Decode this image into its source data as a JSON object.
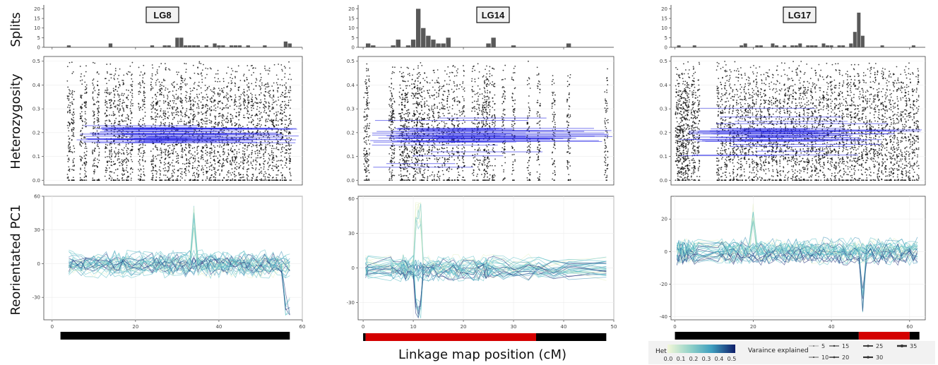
{
  "figure": {
    "row_labels": [
      "Splits",
      "Heterozygosity",
      "Reorientated PC1"
    ],
    "x_axis_label": "Linkage map position (cM)"
  },
  "legend": {
    "het_title": "Het",
    "het_ticks": [
      "0.0",
      "0.1",
      "0.2",
      "0.3",
      "0.4",
      "0.5"
    ],
    "var_title": "Varaince explained",
    "var_items": [
      "5",
      "10",
      "15",
      "20",
      "25",
      "30",
      "35"
    ]
  },
  "colors": {
    "bar": "#595959",
    "points": "#000000",
    "het_line": "#2a2ae6",
    "pc_light": "#e6f2c8",
    "pc_mid": "#5fc0c7",
    "pc_dark": "#1f2f7a",
    "track_black": "#000000",
    "track_red": "#d40000"
  },
  "chart_data": [
    {
      "type": "bar",
      "panel": "LG8",
      "ylabel": "Splits",
      "ylim": [
        0,
        22
      ],
      "yticks": [
        0,
        5,
        10,
        15,
        20
      ],
      "xlim": [
        -2,
        60
      ],
      "x": [
        4,
        14,
        24,
        27,
        28,
        30,
        31,
        32,
        33,
        34,
        35,
        37,
        39,
        40,
        41,
        43,
        44,
        45,
        47,
        51,
        56,
        57
      ],
      "values": [
        1,
        2,
        1,
        1,
        1,
        5,
        5,
        1,
        1,
        1,
        1,
        1,
        2,
        1,
        1,
        1,
        1,
        1,
        1,
        1,
        3,
        2
      ]
    },
    {
      "type": "scatter",
      "panel": "LG8",
      "ylabel": "Heterozygosity",
      "ylim": [
        -0.02,
        0.52
      ],
      "yticks": [
        0.0,
        0.1,
        0.2,
        0.3,
        0.4,
        0.5
      ],
      "xlim": [
        -2,
        60
      ],
      "point_cluster_x": [
        4,
        5,
        7,
        8,
        10,
        11,
        13,
        14,
        15,
        16,
        17,
        18,
        19,
        21,
        22,
        24,
        25,
        26,
        27,
        28,
        29,
        30,
        31,
        32,
        33,
        34,
        35,
        36,
        37,
        38,
        39,
        40,
        41,
        42,
        43,
        44,
        45,
        46,
        47,
        48,
        49,
        50,
        51,
        52,
        53,
        54,
        55,
        56,
        57
      ],
      "segment_level_range": [
        0.15,
        0.23
      ]
    },
    {
      "type": "line",
      "panel": "LG8",
      "ylabel": "Reorientated PC1",
      "ylim": [
        -50,
        60
      ],
      "yticks": [
        -30,
        0,
        30,
        60
      ],
      "xlim": [
        -2,
        60
      ],
      "xticks": [
        0,
        20,
        40,
        60
      ],
      "peak": {
        "x": 34,
        "y": 55
      },
      "trough": {
        "x": 56.5,
        "y": -48
      }
    },
    {
      "type": "bar",
      "panel": "LG14",
      "ylabel": "Splits",
      "ylim": [
        0,
        22
      ],
      "yticks": [
        0,
        5,
        10,
        15,
        20
      ],
      "xlim": [
        -1,
        50
      ],
      "x": [
        1,
        2,
        6,
        7,
        9,
        10,
        11,
        12,
        13,
        14,
        15,
        16,
        17,
        25,
        26,
        30,
        41
      ],
      "values": [
        2,
        1,
        1,
        4,
        1,
        4,
        20,
        10,
        6,
        4,
        2,
        2,
        5,
        2,
        5,
        1,
        2
      ]
    },
    {
      "type": "scatter",
      "panel": "LG14",
      "ylabel": "Heterozygosity",
      "ylim": [
        -0.02,
        0.52
      ],
      "yticks": [
        0.0,
        0.1,
        0.2,
        0.3,
        0.4,
        0.5
      ],
      "xlim": [
        -1,
        50
      ],
      "point_cluster_x": [
        0.5,
        1,
        5.5,
        6,
        7.5,
        8,
        8.5,
        9,
        10,
        10.5,
        11,
        11.5,
        12,
        13,
        14,
        15,
        16,
        17,
        18,
        19,
        20,
        22,
        23,
        24,
        24.5,
        25,
        26,
        28,
        30,
        33,
        35,
        38,
        41,
        48.5
      ],
      "segment_level_range": [
        0.05,
        0.28
      ]
    },
    {
      "type": "line",
      "panel": "LG14",
      "ylabel": "Reorientated PC1",
      "ylim": [
        -45,
        62
      ],
      "yticks": [
        -30,
        0,
        30,
        60
      ],
      "xlim": [
        -1,
        50
      ],
      "xticks": [
        0,
        10,
        20,
        30,
        40,
        50
      ],
      "peak": {
        "x": 11,
        "y": 57
      },
      "trough": {
        "x": 11,
        "y": -45
      }
    },
    {
      "type": "bar",
      "panel": "LG17",
      "ylabel": "Splits",
      "ylim": [
        0,
        22
      ],
      "yticks": [
        0,
        5,
        10,
        15,
        20
      ],
      "xlim": [
        -1,
        64
      ],
      "x": [
        1,
        5,
        17,
        18,
        21,
        22,
        25,
        26,
        28,
        30,
        31,
        32,
        34,
        35,
        36,
        38,
        39,
        40,
        42,
        43,
        45,
        46,
        47,
        48,
        53,
        61
      ],
      "values": [
        1,
        1,
        1,
        2,
        1,
        1,
        2,
        1,
        1,
        1,
        1,
        2,
        1,
        1,
        1,
        2,
        1,
        1,
        1,
        1,
        2,
        8,
        18,
        6,
        1,
        1
      ]
    },
    {
      "type": "scatter",
      "panel": "LG17",
      "ylabel": "Heterozygosity",
      "ylim": [
        -0.02,
        0.52
      ],
      "yticks": [
        0.0,
        0.1,
        0.2,
        0.3,
        0.4,
        0.5
      ],
      "xlim": [
        -1,
        64
      ],
      "point_cluster_x": [
        0.5,
        1,
        1.5,
        2,
        2.5,
        3,
        3.5,
        4.5,
        5,
        6,
        11,
        12,
        13,
        14,
        15,
        16,
        17,
        18,
        19,
        20,
        21,
        22,
        23,
        24,
        25,
        26,
        27,
        28,
        29,
        30,
        31,
        32,
        33,
        34,
        35,
        36,
        37,
        38,
        39,
        40,
        41,
        42,
        43,
        44,
        45,
        46,
        47,
        48,
        49,
        50,
        51,
        52,
        53,
        54,
        55,
        56,
        57,
        58,
        59,
        60,
        61,
        62
      ],
      "segment_level_range": [
        0.06,
        0.31
      ]
    },
    {
      "type": "line",
      "panel": "LG17",
      "ylabel": "Reorientated PC1",
      "ylim": [
        -42,
        34
      ],
      "yticks": [
        -40,
        -20,
        0,
        20
      ],
      "xlim": [
        -1,
        64
      ],
      "xticks": [
        0,
        20,
        40,
        60
      ],
      "peak": {
        "x": 20,
        "y": 30
      },
      "trough": {
        "x": 48,
        "y": -38
      }
    }
  ],
  "panels": [
    {
      "title": "LG8",
      "track": [
        {
          "from": 2,
          "to": 57,
          "color": "#000000"
        }
      ]
    },
    {
      "title": "LG14",
      "track": [
        {
          "from": 0,
          "to": 0.5,
          "color": "#000000"
        },
        {
          "from": 0.5,
          "to": 34.5,
          "color": "#d40000"
        },
        {
          "from": 34.5,
          "to": 48.5,
          "color": "#000000"
        }
      ]
    },
    {
      "title": "LG17",
      "track": [
        {
          "from": 0,
          "to": 47,
          "color": "#000000"
        },
        {
          "from": 47,
          "to": 60,
          "color": "#d40000"
        },
        {
          "from": 60,
          "to": 62.5,
          "color": "#000000"
        }
      ]
    }
  ]
}
